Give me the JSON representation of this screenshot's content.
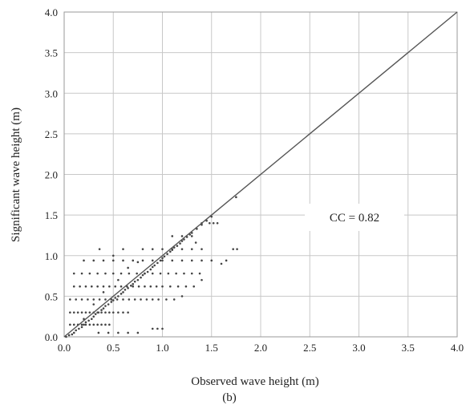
{
  "chart_data": {
    "type": "scatter",
    "panel_label": "(b)",
    "xlabel": "Observed wave height (m)",
    "ylabel": "Significant wave height (m)",
    "xlim": [
      0.0,
      4.0
    ],
    "ylim": [
      0.0,
      4.0
    ],
    "xticks": [
      "0.0",
      "0.5",
      "1.0",
      "1.5",
      "2.0",
      "2.5",
      "3.0",
      "3.5",
      "4.0"
    ],
    "yticks": [
      "0.0",
      "0.5",
      "1.0",
      "1.5",
      "2.0",
      "2.5",
      "3.0",
      "3.5",
      "4.0"
    ],
    "grid": true,
    "annotation": "CC = 0.82",
    "reference_line": {
      "x": [
        0.0,
        4.0
      ],
      "y": [
        0.0,
        4.0
      ]
    },
    "point_color": "#444444",
    "line_color": "#555555",
    "grid_color": "#c8c8c8",
    "series": [
      {
        "points": [
          [
            0.02,
            0.0
          ],
          [
            0.05,
            0.02
          ],
          [
            0.08,
            0.03
          ],
          [
            0.1,
            0.05
          ],
          [
            0.12,
            0.08
          ],
          [
            0.15,
            0.1
          ],
          [
            0.18,
            0.12
          ],
          [
            0.2,
            0.15
          ],
          [
            0.22,
            0.18
          ],
          [
            0.25,
            0.2
          ],
          [
            0.28,
            0.22
          ],
          [
            0.3,
            0.25
          ],
          [
            0.32,
            0.28
          ],
          [
            0.35,
            0.3
          ],
          [
            0.38,
            0.33
          ],
          [
            0.4,
            0.35
          ],
          [
            0.42,
            0.38
          ],
          [
            0.45,
            0.4
          ],
          [
            0.48,
            0.43
          ],
          [
            0.5,
            0.45
          ],
          [
            0.52,
            0.48
          ],
          [
            0.55,
            0.5
          ],
          [
            0.58,
            0.53
          ],
          [
            0.6,
            0.55
          ],
          [
            0.62,
            0.58
          ],
          [
            0.65,
            0.6
          ],
          [
            0.68,
            0.63
          ],
          [
            0.7,
            0.65
          ],
          [
            0.72,
            0.68
          ],
          [
            0.75,
            0.7
          ],
          [
            0.78,
            0.73
          ],
          [
            0.8,
            0.76
          ],
          [
            0.82,
            0.78
          ],
          [
            0.85,
            0.8
          ],
          [
            0.88,
            0.83
          ],
          [
            0.9,
            0.86
          ],
          [
            0.92,
            0.88
          ],
          [
            0.95,
            0.91
          ],
          [
            0.98,
            0.94
          ],
          [
            1.0,
            0.97
          ],
          [
            1.02,
            0.99
          ],
          [
            1.05,
            1.02
          ],
          [
            1.08,
            1.05
          ],
          [
            1.1,
            1.07
          ],
          [
            1.12,
            1.1
          ],
          [
            1.15,
            1.12
          ],
          [
            1.18,
            1.15
          ],
          [
            1.2,
            1.18
          ],
          [
            1.22,
            1.2
          ],
          [
            1.25,
            1.23
          ],
          [
            1.28,
            1.26
          ],
          [
            1.3,
            1.28
          ],
          [
            1.35,
            1.33
          ],
          [
            1.4,
            1.38
          ],
          [
            1.45,
            1.43
          ],
          [
            1.5,
            1.48
          ],
          [
            1.75,
            1.72
          ],
          [
            0.06,
            0.15
          ],
          [
            0.1,
            0.15
          ],
          [
            0.14,
            0.15
          ],
          [
            0.18,
            0.15
          ],
          [
            0.22,
            0.15
          ],
          [
            0.26,
            0.15
          ],
          [
            0.3,
            0.15
          ],
          [
            0.34,
            0.15
          ],
          [
            0.38,
            0.15
          ],
          [
            0.42,
            0.15
          ],
          [
            0.46,
            0.15
          ],
          [
            0.06,
            0.3
          ],
          [
            0.1,
            0.3
          ],
          [
            0.14,
            0.3
          ],
          [
            0.18,
            0.3
          ],
          [
            0.22,
            0.3
          ],
          [
            0.26,
            0.3
          ],
          [
            0.3,
            0.3
          ],
          [
            0.34,
            0.3
          ],
          [
            0.38,
            0.3
          ],
          [
            0.42,
            0.3
          ],
          [
            0.46,
            0.3
          ],
          [
            0.5,
            0.3
          ],
          [
            0.55,
            0.3
          ],
          [
            0.6,
            0.3
          ],
          [
            0.65,
            0.3
          ],
          [
            0.06,
            0.46
          ],
          [
            0.12,
            0.46
          ],
          [
            0.18,
            0.46
          ],
          [
            0.24,
            0.46
          ],
          [
            0.3,
            0.46
          ],
          [
            0.36,
            0.46
          ],
          [
            0.42,
            0.46
          ],
          [
            0.48,
            0.46
          ],
          [
            0.54,
            0.46
          ],
          [
            0.6,
            0.46
          ],
          [
            0.66,
            0.46
          ],
          [
            0.72,
            0.46
          ],
          [
            0.78,
            0.46
          ],
          [
            0.84,
            0.46
          ],
          [
            0.9,
            0.46
          ],
          [
            0.96,
            0.46
          ],
          [
            1.04,
            0.46
          ],
          [
            1.12,
            0.46
          ],
          [
            0.1,
            0.62
          ],
          [
            0.16,
            0.62
          ],
          [
            0.22,
            0.62
          ],
          [
            0.28,
            0.62
          ],
          [
            0.34,
            0.62
          ],
          [
            0.4,
            0.62
          ],
          [
            0.46,
            0.62
          ],
          [
            0.52,
            0.62
          ],
          [
            0.58,
            0.62
          ],
          [
            0.64,
            0.62
          ],
          [
            0.7,
            0.62
          ],
          [
            0.76,
            0.62
          ],
          [
            0.82,
            0.62
          ],
          [
            0.88,
            0.62
          ],
          [
            0.94,
            0.62
          ],
          [
            1.0,
            0.62
          ],
          [
            1.08,
            0.62
          ],
          [
            1.16,
            0.62
          ],
          [
            1.24,
            0.62
          ],
          [
            1.32,
            0.62
          ],
          [
            0.1,
            0.78
          ],
          [
            0.18,
            0.78
          ],
          [
            0.26,
            0.78
          ],
          [
            0.34,
            0.78
          ],
          [
            0.42,
            0.78
          ],
          [
            0.5,
            0.78
          ],
          [
            0.58,
            0.78
          ],
          [
            0.66,
            0.78
          ],
          [
            0.74,
            0.78
          ],
          [
            0.82,
            0.78
          ],
          [
            0.9,
            0.78
          ],
          [
            0.98,
            0.78
          ],
          [
            1.06,
            0.78
          ],
          [
            1.14,
            0.78
          ],
          [
            1.22,
            0.78
          ],
          [
            1.3,
            0.78
          ],
          [
            1.38,
            0.78
          ],
          [
            0.2,
            0.94
          ],
          [
            0.3,
            0.94
          ],
          [
            0.4,
            0.94
          ],
          [
            0.5,
            0.94
          ],
          [
            0.6,
            0.94
          ],
          [
            0.7,
            0.94
          ],
          [
            0.8,
            0.94
          ],
          [
            0.9,
            0.94
          ],
          [
            1.0,
            0.94
          ],
          [
            1.1,
            0.94
          ],
          [
            1.2,
            0.94
          ],
          [
            1.3,
            0.94
          ],
          [
            1.4,
            0.94
          ],
          [
            1.5,
            0.94
          ],
          [
            1.65,
            0.94
          ],
          [
            0.36,
            1.08
          ],
          [
            0.6,
            1.08
          ],
          [
            0.8,
            1.08
          ],
          [
            0.9,
            1.08
          ],
          [
            1.0,
            1.08
          ],
          [
            1.1,
            1.08
          ],
          [
            1.2,
            1.08
          ],
          [
            1.3,
            1.08
          ],
          [
            1.4,
            1.08
          ],
          [
            1.72,
            1.08
          ],
          [
            1.76,
            1.08
          ],
          [
            1.1,
            1.24
          ],
          [
            1.2,
            1.24
          ],
          [
            1.3,
            1.24
          ],
          [
            1.34,
            1.16
          ],
          [
            1.4,
            1.4
          ],
          [
            1.48,
            1.4
          ],
          [
            1.52,
            1.4
          ],
          [
            1.56,
            1.4
          ],
          [
            0.9,
            0.1
          ],
          [
            0.95,
            0.1
          ],
          [
            1.0,
            0.1
          ],
          [
            0.35,
            0.05
          ],
          [
            0.45,
            0.05
          ],
          [
            0.55,
            0.05
          ],
          [
            0.65,
            0.05
          ],
          [
            0.75,
            0.05
          ],
          [
            0.2,
            0.22
          ],
          [
            0.3,
            0.4
          ],
          [
            0.4,
            0.55
          ],
          [
            0.55,
            0.7
          ],
          [
            0.65,
            0.85
          ],
          [
            0.75,
            0.92
          ],
          [
            0.5,
            1.0
          ],
          [
            1.2,
            0.5
          ],
          [
            1.4,
            0.7
          ],
          [
            1.6,
            0.9
          ]
        ]
      }
    ]
  }
}
